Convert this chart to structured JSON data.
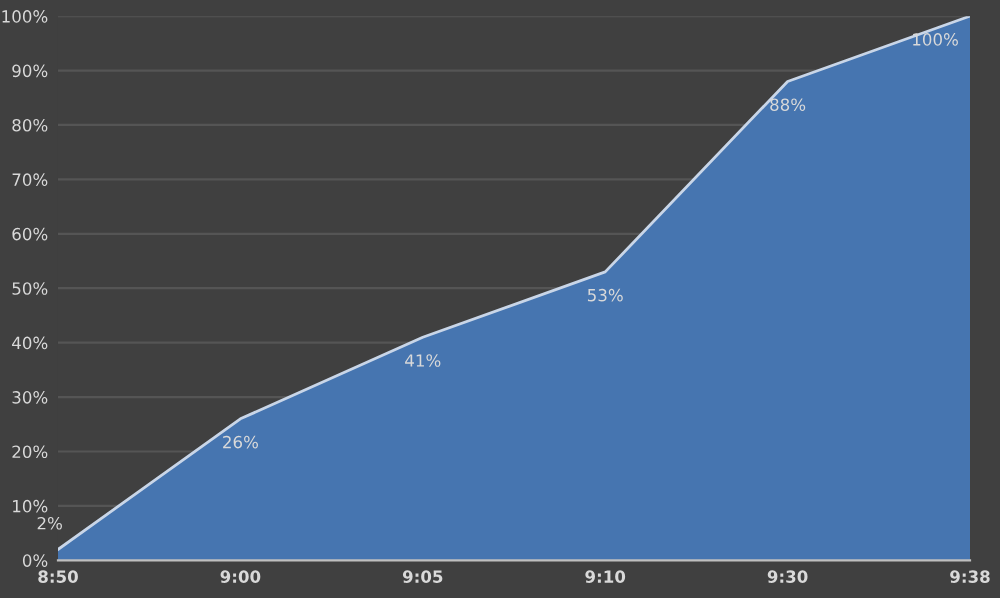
{
  "chart_data": {
    "type": "area",
    "categories": [
      "8:50",
      "9:00",
      "9:05",
      "9:10",
      "9:30",
      "9:38"
    ],
    "values": [
      2,
      26,
      41,
      53,
      88,
      100
    ],
    "value_labels": [
      "2%",
      "26%",
      "41%",
      "53%",
      "88%",
      "100%"
    ],
    "color": "#4675b0",
    "ylim": [
      0,
      100
    ],
    "yticks": [
      {
        "value": 0,
        "label": "0%"
      },
      {
        "value": 10,
        "label": "10%"
      },
      {
        "value": 20,
        "label": "20%"
      },
      {
        "value": 30,
        "label": "30%"
      },
      {
        "value": 40,
        "label": "40%"
      },
      {
        "value": 50,
        "label": "50%"
      },
      {
        "value": 60,
        "label": "60%"
      },
      {
        "value": 70,
        "label": "70%"
      },
      {
        "value": 80,
        "label": "80%"
      },
      {
        "value": 90,
        "label": "90%"
      },
      {
        "value": 100,
        "label": "100%"
      }
    ],
    "grid": "y"
  }
}
